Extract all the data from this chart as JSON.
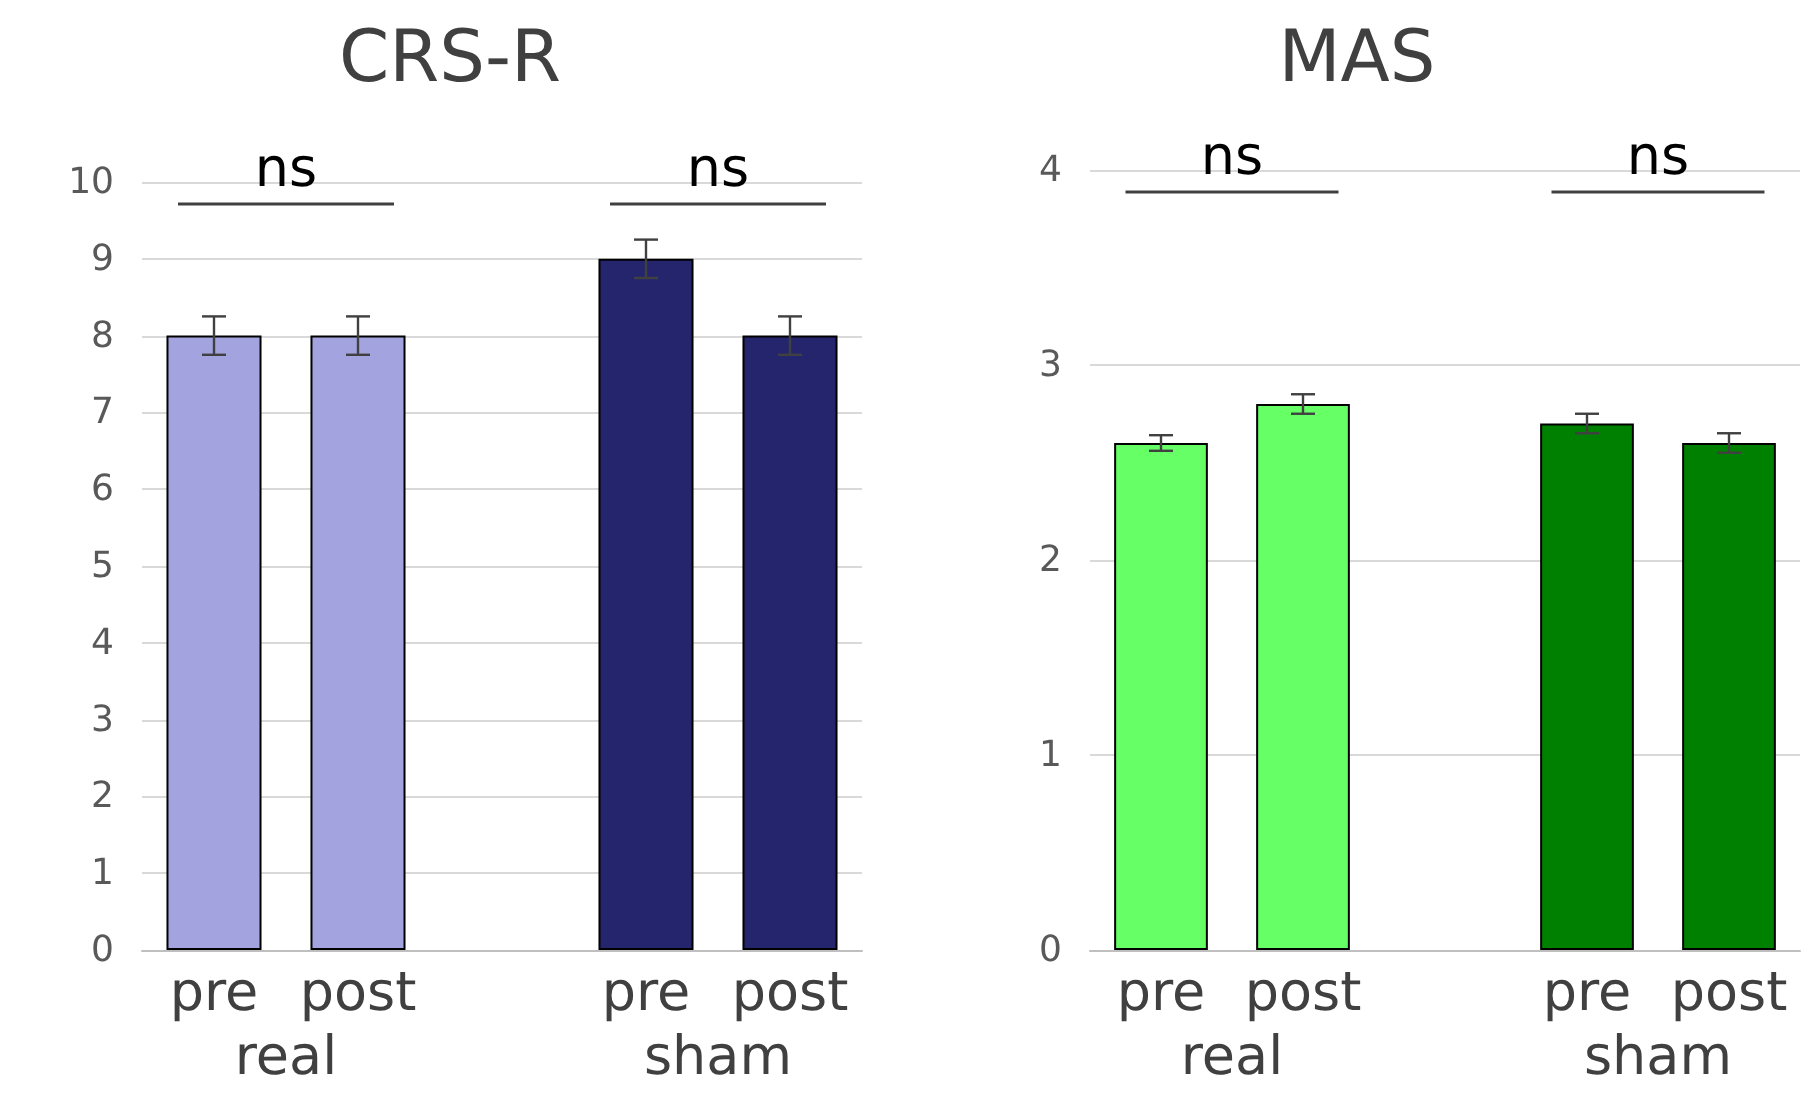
{
  "chart_data": [
    {
      "type": "bar",
      "title": "CRS-R",
      "categories": [
        "pre",
        "post",
        null,
        "pre",
        "post"
      ],
      "values": [
        8,
        8,
        null,
        9,
        8
      ],
      "errors": [
        0.25,
        0.25,
        null,
        0.25,
        0.25
      ],
      "colors": [
        "#a3a3e0",
        "#a3a3e0",
        null,
        "#25256e",
        "#25256e"
      ],
      "ylim": [
        0,
        10
      ],
      "yticks": [
        0,
        1,
        2,
        3,
        4,
        5,
        6,
        7,
        8,
        9,
        10
      ],
      "grid": "y",
      "annotations": [
        "ns",
        "ns",
        "real",
        "sham"
      ]
    },
    {
      "type": "bar",
      "title": "MAS",
      "categories": [
        "pre",
        "post",
        null,
        "pre",
        "post"
      ],
      "values": [
        2.6,
        2.8,
        null,
        2.7,
        2.6
      ],
      "errors": [
        0.04,
        0.05,
        null,
        0.05,
        0.05
      ],
      "colors": [
        "#66ff66",
        "#66ff66",
        null,
        "#008000",
        "#008000"
      ],
      "ylim": [
        0,
        4
      ],
      "yticks": [
        0,
        1,
        2,
        3,
        4
      ],
      "grid": "y",
      "annotations": [
        "ns",
        "ns",
        "real",
        "sham"
      ]
    }
  ]
}
